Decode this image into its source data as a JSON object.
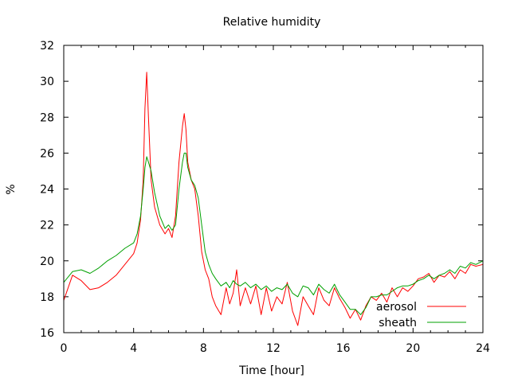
{
  "chart_data": {
    "type": "line",
    "title": "Relative humidity",
    "xlabel": "Time [hour]",
    "ylabel": "%",
    "xlim": [
      0,
      24
    ],
    "ylim": [
      16,
      32
    ],
    "xticks": [
      0,
      4,
      8,
      12,
      16,
      20,
      24
    ],
    "yticks": [
      16,
      18,
      20,
      22,
      24,
      26,
      28,
      30,
      32
    ],
    "grid": false,
    "legend_position": "bottom-right",
    "series": [
      {
        "name": "aerosol",
        "color": "#ff0000",
        "x": [
          0,
          0.5,
          1,
          1.5,
          2,
          2.5,
          3,
          3.5,
          4,
          4.2,
          4.4,
          4.55,
          4.65,
          4.75,
          4.85,
          5,
          5.2,
          5.5,
          5.8,
          6,
          6.2,
          6.4,
          6.6,
          6.8,
          6.9,
          7.0,
          7.1,
          7.3,
          7.5,
          7.7,
          7.9,
          8.1,
          8.3,
          8.5,
          8.7,
          9,
          9.3,
          9.5,
          9.7,
          9.9,
          10.1,
          10.4,
          10.7,
          11,
          11.3,
          11.6,
          11.9,
          12.2,
          12.5,
          12.8,
          13.1,
          13.4,
          13.7,
          14,
          14.3,
          14.6,
          14.9,
          15.2,
          15.5,
          15.8,
          16.1,
          16.4,
          16.7,
          17,
          17.3,
          17.6,
          17.9,
          18.2,
          18.5,
          18.8,
          19.1,
          19.4,
          19.7,
          20,
          20.3,
          20.6,
          20.9,
          21.2,
          21.5,
          21.8,
          22.1,
          22.4,
          22.7,
          23,
          23.3,
          23.6,
          24
        ],
        "y": [
          17.8,
          19.2,
          18.9,
          18.4,
          18.5,
          18.8,
          19.2,
          19.8,
          20.4,
          21.0,
          22.3,
          24.5,
          28.5,
          30.5,
          28.0,
          24.5,
          23.0,
          22.0,
          21.5,
          21.8,
          21.3,
          22.5,
          25.5,
          27.5,
          28.2,
          27.3,
          25.5,
          24.5,
          24.0,
          22.5,
          20.5,
          19.5,
          19.0,
          18.0,
          17.5,
          17.0,
          18.5,
          17.6,
          18.2,
          19.5,
          17.5,
          18.5,
          17.6,
          18.6,
          17.0,
          18.5,
          17.2,
          18.0,
          17.6,
          18.8,
          17.2,
          16.4,
          18.0,
          17.5,
          17.0,
          18.5,
          17.8,
          17.5,
          18.5,
          17.9,
          17.4,
          16.8,
          17.3,
          16.7,
          17.5,
          18.0,
          17.8,
          18.2,
          17.7,
          18.5,
          18.0,
          18.5,
          18.3,
          18.6,
          19.0,
          19.1,
          19.3,
          18.8,
          19.2,
          19.1,
          19.4,
          19.0,
          19.5,
          19.3,
          19.8,
          19.7,
          19.8
        ]
      },
      {
        "name": "sheath",
        "color": "#00a000",
        "x": [
          0,
          0.5,
          1,
          1.5,
          2,
          2.5,
          3,
          3.5,
          4,
          4.2,
          4.4,
          4.55,
          4.65,
          4.75,
          4.85,
          5,
          5.2,
          5.5,
          5.8,
          6,
          6.2,
          6.4,
          6.6,
          6.8,
          6.9,
          7.0,
          7.1,
          7.3,
          7.5,
          7.7,
          7.9,
          8.1,
          8.3,
          8.5,
          8.7,
          9,
          9.3,
          9.5,
          9.7,
          9.9,
          10.1,
          10.4,
          10.7,
          11,
          11.3,
          11.6,
          11.9,
          12.2,
          12.5,
          12.8,
          13.1,
          13.4,
          13.7,
          14,
          14.3,
          14.6,
          14.9,
          15.2,
          15.5,
          15.8,
          16.1,
          16.4,
          16.7,
          17,
          17.3,
          17.6,
          17.9,
          18.2,
          18.5,
          18.8,
          19.1,
          19.4,
          19.7,
          20,
          20.3,
          20.6,
          20.9,
          21.2,
          21.5,
          21.8,
          22.1,
          22.4,
          22.7,
          23,
          23.3,
          23.6,
          24
        ],
        "y": [
          18.8,
          19.4,
          19.5,
          19.3,
          19.6,
          20.0,
          20.3,
          20.7,
          21.0,
          21.5,
          22.5,
          24.0,
          25.2,
          25.8,
          25.5,
          25.0,
          23.8,
          22.5,
          21.8,
          22.0,
          21.7,
          22.0,
          24.0,
          25.5,
          26.0,
          26.0,
          25.2,
          24.5,
          24.2,
          23.5,
          22.0,
          20.5,
          19.8,
          19.3,
          19.0,
          18.6,
          18.8,
          18.5,
          18.9,
          18.7,
          18.6,
          18.8,
          18.5,
          18.7,
          18.4,
          18.6,
          18.3,
          18.5,
          18.4,
          18.7,
          18.2,
          18.0,
          18.6,
          18.5,
          18.1,
          18.7,
          18.4,
          18.2,
          18.7,
          18.1,
          17.7,
          17.3,
          17.3,
          17.0,
          17.4,
          18.0,
          18.0,
          18.1,
          18.1,
          18.3,
          18.5,
          18.6,
          18.6,
          18.7,
          18.9,
          19.0,
          19.2,
          19.0,
          19.2,
          19.3,
          19.5,
          19.3,
          19.7,
          19.6,
          19.9,
          19.8,
          20.0
        ]
      }
    ]
  }
}
